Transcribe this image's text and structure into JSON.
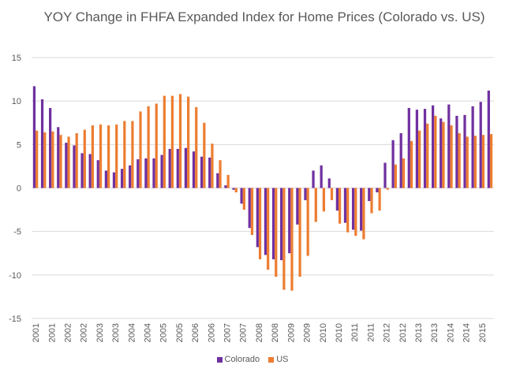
{
  "chart_data": {
    "type": "bar",
    "title": "YOY Change in FHFA Expanded Index for Home Prices (Colorado vs. US)",
    "xlabel": "",
    "ylabel": "",
    "ylim": [
      -15,
      15
    ],
    "yticks": [
      15,
      10,
      5,
      0,
      -5,
      -10,
      -15
    ],
    "grid": true,
    "legend": "bottom",
    "categories": [
      "2001",
      "2001",
      "2001",
      "2001",
      "2002",
      "2002",
      "2002",
      "2002",
      "2003",
      "2003",
      "2003",
      "2003",
      "2004",
      "2004",
      "2004",
      "2004",
      "2005",
      "2005",
      "2005",
      "2005",
      "2006",
      "2006",
      "2006",
      "2006",
      "2007",
      "2007",
      "2007",
      "2007",
      "2008",
      "2008",
      "2008",
      "2008",
      "2009",
      "2009",
      "2009",
      "2009",
      "2010",
      "2010",
      "2010",
      "2010",
      "2011",
      "2011",
      "2011",
      "2011",
      "2012",
      "2012",
      "2012",
      "2012",
      "2013",
      "2013",
      "2013",
      "2013",
      "2014",
      "2014",
      "2014",
      "2014",
      "2015",
      "2015"
    ],
    "tick_labels_every": 2,
    "series": [
      {
        "name": "Colorado",
        "color": "#7030A0",
        "values": [
          11.7,
          10.2,
          9.2,
          7.0,
          5.2,
          4.9,
          4.0,
          3.9,
          3.2,
          2.0,
          1.8,
          2.2,
          2.6,
          3.3,
          3.4,
          3.4,
          3.8,
          4.5,
          4.5,
          4.6,
          4.2,
          3.6,
          3.5,
          1.7,
          0.3,
          -0.2,
          -1.8,
          -4.6,
          -6.8,
          -7.7,
          -8.2,
          -8.3,
          -7.5,
          -4.2,
          -1.4,
          2.0,
          2.6,
          1.1,
          -2.6,
          -4.0,
          -4.8,
          -4.9,
          -1.5,
          -0.5,
          2.9,
          5.5,
          6.3,
          9.2,
          9.0,
          9.1,
          9.5,
          8.0,
          9.6,
          8.3,
          8.4,
          9.4,
          9.9,
          11.2
        ]
      },
      {
        "name": "US",
        "color": "#ED7D31",
        "values": [
          6.6,
          6.4,
          6.5,
          6.1,
          5.9,
          6.3,
          6.7,
          7.2,
          7.3,
          7.2,
          7.3,
          7.7,
          7.7,
          8.8,
          9.4,
          9.7,
          10.6,
          10.6,
          10.8,
          10.5,
          9.3,
          7.5,
          5.1,
          3.2,
          1.5,
          -0.5,
          -2.5,
          -5.4,
          -8.2,
          -9.4,
          -10.2,
          -11.7,
          -11.8,
          -10.2,
          -7.8,
          -3.9,
          -2.7,
          -1.4,
          -4.1,
          -5.1,
          -5.5,
          -5.9,
          -2.9,
          -2.6,
          -0.2,
          2.7,
          3.4,
          5.4,
          6.6,
          7.4,
          8.3,
          7.6,
          7.2,
          6.3,
          5.9,
          6.0,
          6.1,
          6.2
        ]
      }
    ]
  }
}
